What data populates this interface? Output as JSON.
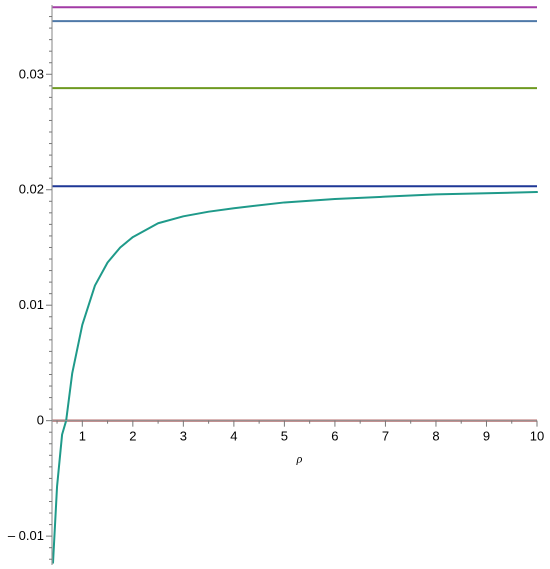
{
  "chart_data": {
    "type": "line",
    "title": "",
    "xlabel": "ρ",
    "ylabel": "",
    "xlim": [
      0.4,
      10
    ],
    "ylim": [
      -0.0125,
      0.036
    ],
    "x_ticks": [
      1,
      2,
      3,
      4,
      5,
      6,
      7,
      8,
      9,
      10
    ],
    "y_ticks": [
      -0.01,
      0,
      0.01,
      0.02,
      0.03
    ],
    "x_tick_labels": [
      "1",
      "2",
      "3",
      "4",
      "5",
      "6",
      "7",
      "8",
      "9",
      "10"
    ],
    "y_tick_labels": [
      "– 0.01",
      "0",
      "0.01",
      "0.02",
      "0.03"
    ],
    "grid": false,
    "series": [
      {
        "kind": "hline",
        "y": 0.0358,
        "color": "#a23aa5"
      },
      {
        "kind": "hline",
        "y": 0.0346,
        "color": "#4f79a8"
      },
      {
        "kind": "hline",
        "y": 0.0288,
        "color": "#6e9a21"
      },
      {
        "kind": "hline",
        "y": 0.0203,
        "color": "#1e3796"
      },
      {
        "kind": "hline",
        "y": 0.0,
        "color": "#9e3d3d"
      },
      {
        "kind": "curve",
        "color": "#1f9a8a",
        "x": [
          0.42,
          0.5,
          0.6,
          0.68,
          0.8,
          1.0,
          1.25,
          1.5,
          1.75,
          2.0,
          2.5,
          3.0,
          3.5,
          4.0,
          5.0,
          6.0,
          7.0,
          8.0,
          9.0,
          10.0
        ],
        "y": [
          -0.0123,
          -0.0057,
          -0.0012,
          0.0,
          0.0041,
          0.0083,
          0.0117,
          0.0137,
          0.015,
          0.0159,
          0.0171,
          0.0177,
          0.0181,
          0.0184,
          0.0189,
          0.0192,
          0.0194,
          0.0196,
          0.0197,
          0.0198
        ]
      }
    ]
  }
}
